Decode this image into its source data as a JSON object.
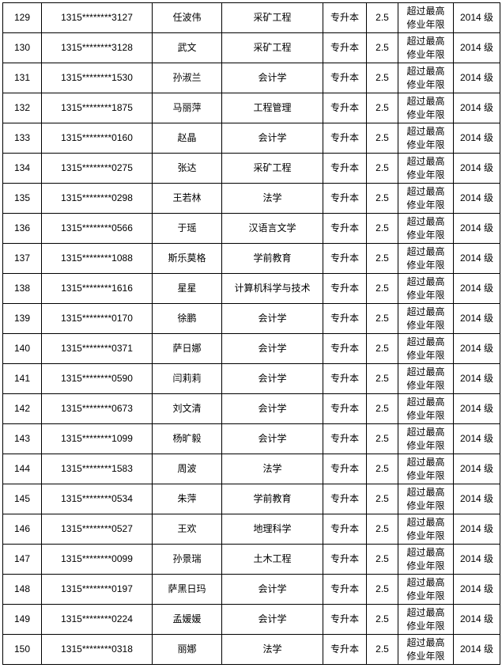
{
  "rows": [
    [
      "129",
      "1315********3127",
      "任波伟",
      "采矿工程",
      "专升本",
      "2.5",
      "超过最高修业年限",
      "2014 级"
    ],
    [
      "130",
      "1315********3128",
      "武文",
      "采矿工程",
      "专升本",
      "2.5",
      "超过最高修业年限",
      "2014 级"
    ],
    [
      "131",
      "1315********1530",
      "孙淑兰",
      "会计学",
      "专升本",
      "2.5",
      "超过最高修业年限",
      "2014 级"
    ],
    [
      "132",
      "1315********1875",
      "马丽萍",
      "工程管理",
      "专升本",
      "2.5",
      "超过最高修业年限",
      "2014 级"
    ],
    [
      "133",
      "1315********0160",
      "赵晶",
      "会计学",
      "专升本",
      "2.5",
      "超过最高修业年限",
      "2014 级"
    ],
    [
      "134",
      "1315********0275",
      "张达",
      "采矿工程",
      "专升本",
      "2.5",
      "超过最高修业年限",
      "2014 级"
    ],
    [
      "135",
      "1315********0298",
      "王若林",
      "法学",
      "专升本",
      "2.5",
      "超过最高修业年限",
      "2014 级"
    ],
    [
      "136",
      "1315********0566",
      "于瑶",
      "汉语言文学",
      "专升本",
      "2.5",
      "超过最高修业年限",
      "2014 级"
    ],
    [
      "137",
      "1315********1088",
      "斯乐莫格",
      "学前教育",
      "专升本",
      "2.5",
      "超过最高修业年限",
      "2014 级"
    ],
    [
      "138",
      "1315********1616",
      "星星",
      "计算机科学与技术",
      "专升本",
      "2.5",
      "超过最高修业年限",
      "2014 级"
    ],
    [
      "139",
      "1315********0170",
      "徐鹏",
      "会计学",
      "专升本",
      "2.5",
      "超过最高修业年限",
      "2014 级"
    ],
    [
      "140",
      "1315********0371",
      "萨日娜",
      "会计学",
      "专升本",
      "2.5",
      "超过最高修业年限",
      "2014 级"
    ],
    [
      "141",
      "1315********0590",
      "闫莉莉",
      "会计学",
      "专升本",
      "2.5",
      "超过最高修业年限",
      "2014 级"
    ],
    [
      "142",
      "1315********0673",
      "刘文清",
      "会计学",
      "专升本",
      "2.5",
      "超过最高修业年限",
      "2014 级"
    ],
    [
      "143",
      "1315********1099",
      "杨旷毅",
      "会计学",
      "专升本",
      "2.5",
      "超过最高修业年限",
      "2014 级"
    ],
    [
      "144",
      "1315********1583",
      "周波",
      "法学",
      "专升本",
      "2.5",
      "超过最高修业年限",
      "2014 级"
    ],
    [
      "145",
      "1315********0534",
      "朱萍",
      "学前教育",
      "专升本",
      "2.5",
      "超过最高修业年限",
      "2014 级"
    ],
    [
      "146",
      "1315********0527",
      "王欢",
      "地理科学",
      "专升本",
      "2.5",
      "超过最高修业年限",
      "2014 级"
    ],
    [
      "147",
      "1315********0099",
      "孙景瑞",
      "土木工程",
      "专升本",
      "2.5",
      "超过最高修业年限",
      "2014 级"
    ],
    [
      "148",
      "1315********0197",
      "萨黑日玛",
      "会计学",
      "专升本",
      "2.5",
      "超过最高修业年限",
      "2014 级"
    ],
    [
      "149",
      "1315********0224",
      "孟媛媛",
      "会计学",
      "专升本",
      "2.5",
      "超过最高修业年限",
      "2014 级"
    ],
    [
      "150",
      "1315********0318",
      "丽娜",
      "法学",
      "专升本",
      "2.5",
      "超过最高修业年限",
      "2014 级"
    ]
  ]
}
